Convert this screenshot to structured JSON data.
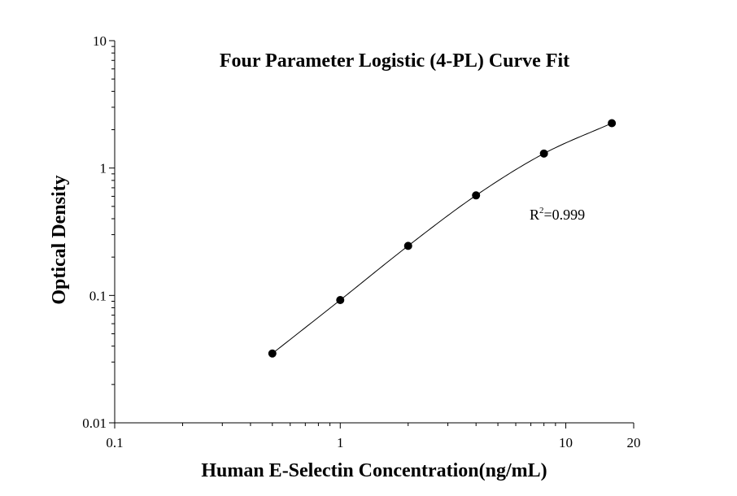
{
  "chart_data": {
    "type": "scatter",
    "title": "Four Parameter Logistic (4-PL) Curve Fit",
    "xlabel": "Human E-Selectin Concentration(ng/mL)",
    "ylabel": "Optical Density",
    "x_scale": "log",
    "y_scale": "log",
    "xlim": [
      0.1,
      20
    ],
    "ylim": [
      0.01,
      10
    ],
    "x_ticks": [
      {
        "value": 0.1,
        "label": "0.1"
      },
      {
        "value": 1,
        "label": "1"
      },
      {
        "value": 10,
        "label": "10"
      },
      {
        "value": 20,
        "label": "20"
      }
    ],
    "y_ticks": [
      {
        "value": 0.01,
        "label": "0.01"
      },
      {
        "value": 0.1,
        "label": "0.1"
      },
      {
        "value": 1,
        "label": "1"
      },
      {
        "value": 10,
        "label": "10"
      }
    ],
    "points": [
      {
        "x": 0.5,
        "y": 0.035
      },
      {
        "x": 1,
        "y": 0.092
      },
      {
        "x": 2,
        "y": 0.245
      },
      {
        "x": 4,
        "y": 0.61
      },
      {
        "x": 8,
        "y": 1.3
      },
      {
        "x": 16,
        "y": 2.25
      }
    ],
    "annotation": {
      "base": "R",
      "sup": "2",
      "rest": "=0.999"
    },
    "grid": false,
    "legend": "none"
  }
}
